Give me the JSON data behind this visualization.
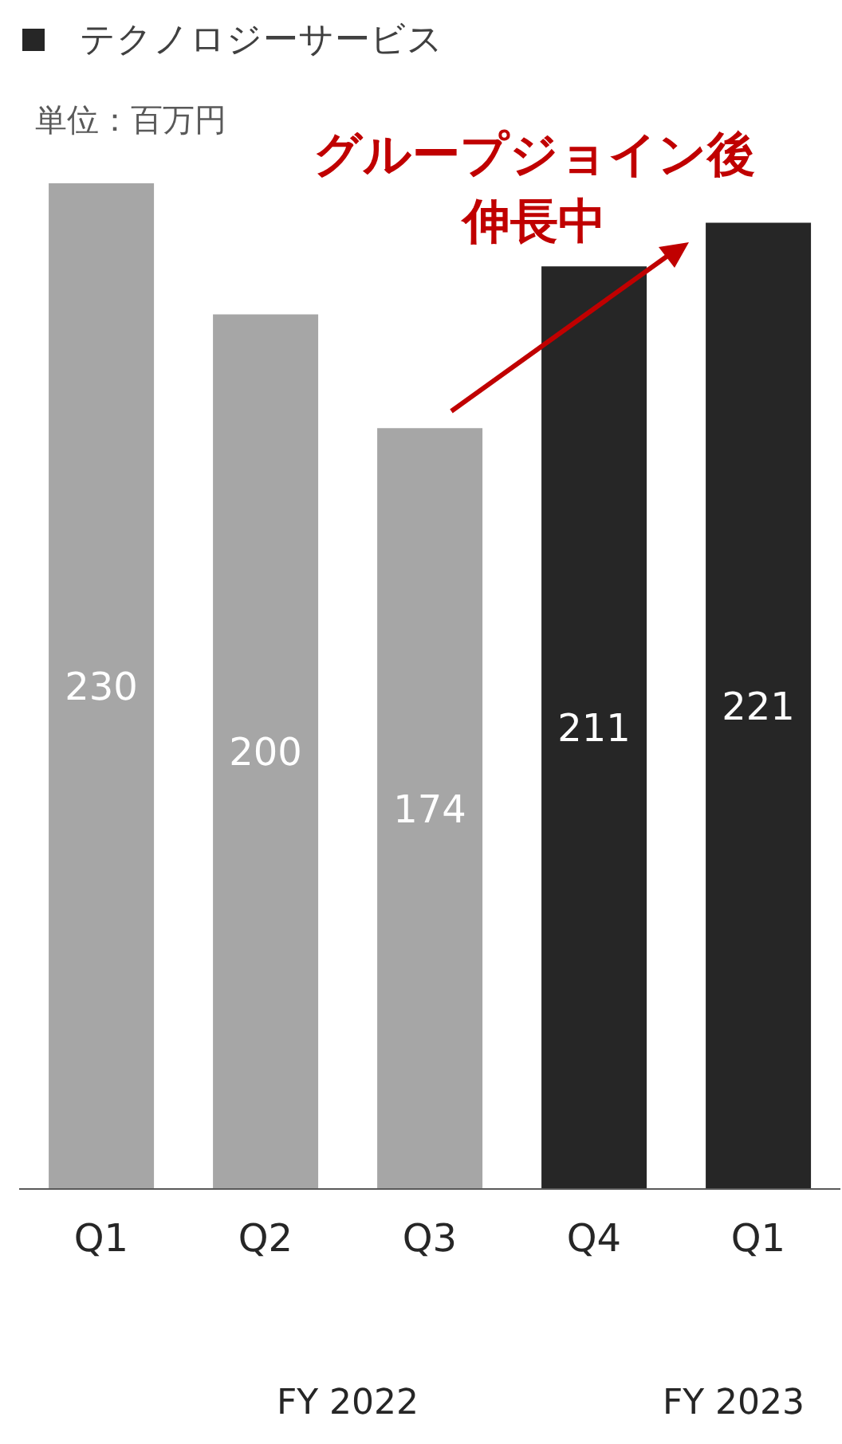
{
  "chart_data": {
    "type": "bar",
    "categories": [
      "Q1",
      "Q2",
      "Q3",
      "Q4",
      "Q1"
    ],
    "series": [
      {
        "name": "テクノロジーサービス",
        "color": "#262626",
        "values": [
          230,
          200,
          174,
          211,
          221
        ],
        "colors": [
          "#a6a6a6",
          "#a6a6a6",
          "#a6a6a6",
          "#262626",
          "#262626"
        ]
      }
    ],
    "data_labels": true,
    "legend": "top left",
    "grid": false,
    "annotations": [
      "単位：百万円",
      "グループジョイン後",
      "伸長中",
      "FY 2022",
      "FY 2023"
    ]
  }
}
